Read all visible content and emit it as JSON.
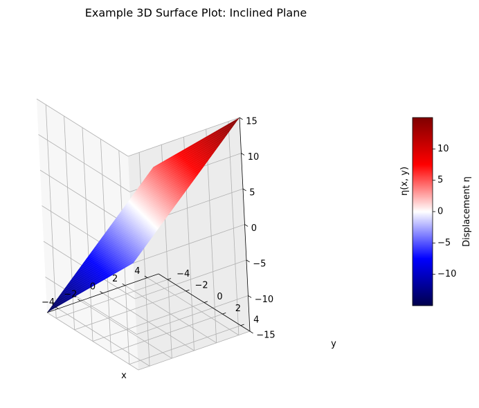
{
  "chart_data": {
    "type": "surface",
    "title": "Example 3D Surface Plot: Inclined Plane",
    "xlabel": "x",
    "ylabel": "y",
    "zlabel": "η(x, y)",
    "xlim": [
      -5,
      5
    ],
    "ylim": [
      -5,
      5
    ],
    "zlim": [
      -15,
      15
    ],
    "x_ticks": [
      -4,
      -2,
      0,
      2,
      4
    ],
    "y_ticks": [
      -4,
      -2,
      0,
      2,
      4
    ],
    "z_ticks": [
      -15,
      -10,
      -5,
      0,
      5,
      10,
      15
    ],
    "surface": {
      "equation": "η = 1.5x + 1.5y",
      "x_range": [
        -5,
        5
      ],
      "y_range": [
        -5,
        5
      ],
      "corners": [
        {
          "x": -5,
          "y": -5,
          "z": -15
        },
        {
          "x": 5,
          "y": -5,
          "z": 0
        },
        {
          "x": 5,
          "y": 5,
          "z": 15
        },
        {
          "x": -5,
          "y": 5,
          "z": 0
        }
      ]
    },
    "colormap": "seismic",
    "grid": true,
    "colorbar": {
      "label": "Displacement η",
      "range": [
        -15,
        15
      ],
      "ticks": [
        -10,
        -5,
        0,
        5,
        10
      ],
      "tick_labels": [
        "−10",
        "−5",
        "0",
        "5",
        "10"
      ]
    },
    "tick_labels": {
      "x": [
        "−4",
        "−2",
        "0",
        "2",
        "4"
      ],
      "y": [
        "−4",
        "−2",
        "0",
        "2",
        "4"
      ],
      "z": [
        "−15",
        "−10",
        "−5",
        "0",
        "5",
        "10",
        "15"
      ]
    }
  }
}
